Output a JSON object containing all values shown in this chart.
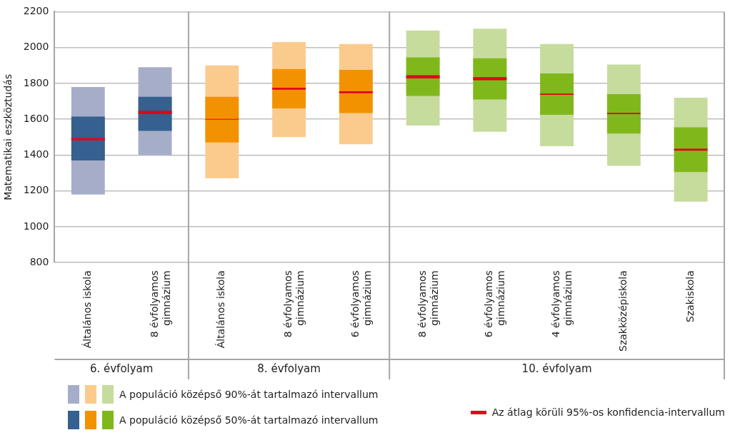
{
  "chart_data": {
    "type": "bar",
    "ylabel": "Matematikai eszköztudás",
    "categories": [
      "Általános iskola",
      "8 évfolyamos gimnázium",
      "Általános iskola",
      "8 évfolyamos gimnázium",
      "6 évfolyamos gimnázium",
      "8 évfolyamos gimnázium",
      "6 évfolyamos gimnázium",
      "4 évfolyamos gimnázium",
      "Szakközépiskola",
      "Szakiskola"
    ],
    "series": [
      {
        "name": "A populáció középső 90%-át tartalmazó intervallum",
        "base": [
          1180,
          1400,
          1270,
          1500,
          1460,
          1565,
          1530,
          1450,
          1340,
          1140
        ],
        "values": [
          600,
          490,
          630,
          530,
          560,
          530,
          575,
          570,
          565,
          580
        ],
        "colors": [
          "#a5adc9",
          "#a5adc9",
          "#fbcb8e",
          "#fbcb8e",
          "#fbcb8e",
          "#c6dc9c",
          "#c6dc9c",
          "#c6dc9c",
          "#c6dc9c",
          "#c6dc9c"
        ]
      },
      {
        "name": "A populáció középső 50%-át tartalmazó intervallum",
        "base": [
          1370,
          1535,
          1470,
          1660,
          1635,
          1730,
          1710,
          1625,
          1520,
          1305
        ],
        "values": [
          245,
          190,
          255,
          220,
          240,
          215,
          230,
          230,
          220,
          250
        ],
        "colors": [
          "#35608f",
          "#35608f",
          "#f39200",
          "#f39200",
          "#f39200",
          "#80b81c",
          "#80b81c",
          "#80b81c",
          "#80b81c",
          "#80b81c"
        ]
      },
      {
        "name": "Az átlag körüli 95%-os konfidencia-intervallum",
        "base": [
          1481,
          1629,
          1598,
          1765,
          1745,
          1828,
          1818,
          1736,
          1629,
          1425
        ],
        "values": [
          14,
          17,
          4,
          11,
          11,
          17,
          17,
          7,
          7,
          11
        ],
        "color": "#e3001b"
      }
    ],
    "annotations": [
      "6. évfolyam",
      "8. évfolyam",
      "10. évfolyam"
    ],
    "ylim": [
      800,
      2200
    ],
    "yticks": [
      800,
      1000,
      1200,
      1400,
      1600,
      1800,
      2000,
      2200
    ],
    "grid": "y",
    "legend": "bottom"
  }
}
